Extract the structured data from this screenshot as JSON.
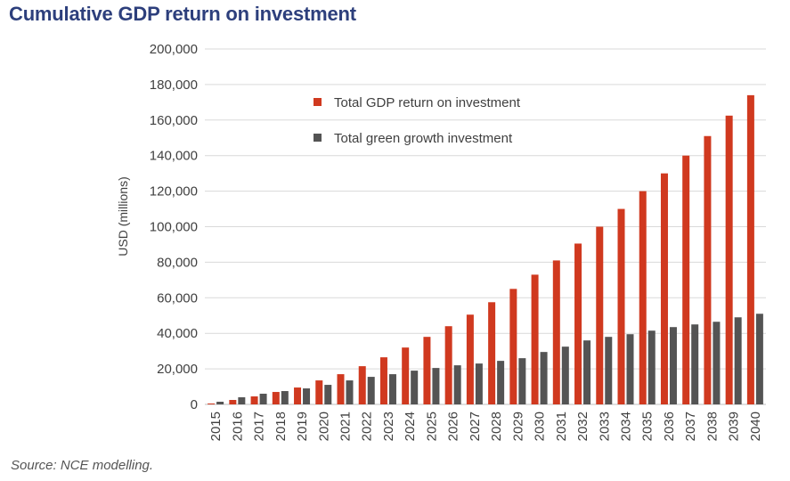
{
  "title": "Cumulative GDP return on investment",
  "source": "Source: NCE modelling.",
  "colors": {
    "series_0": "#d0391f",
    "series_1": "#545454",
    "grid": "#d9d9d9",
    "title": "#2d3f7c"
  },
  "chart_data": {
    "type": "bar",
    "title": "Cumulative GDP return on investment",
    "xlabel": "",
    "ylabel": "USD (millions)",
    "ylim": [
      0,
      200000
    ],
    "yticks": [
      0,
      20000,
      40000,
      60000,
      80000,
      100000,
      120000,
      140000,
      160000,
      180000,
      200000
    ],
    "ytick_labels": [
      "0",
      "20,000",
      "40,000",
      "60,000",
      "80,000",
      "100,000",
      "120,000",
      "140,000",
      "160,000",
      "180,000",
      "200,000"
    ],
    "grid": true,
    "legend_position": "top-right",
    "categories": [
      "2015",
      "2016",
      "2017",
      "2018",
      "2019",
      "2020",
      "2021",
      "2022",
      "2023",
      "2024",
      "2025",
      "2026",
      "2027",
      "2028",
      "2029",
      "2030",
      "2031",
      "2032",
      "2033",
      "2034",
      "2035",
      "2036",
      "2037",
      "2038",
      "2039",
      "2040"
    ],
    "series": [
      {
        "name": "Total GDP return on investment",
        "values": [
          500,
          2500,
          4500,
          7000,
          9500,
          13500,
          17000,
          21500,
          26500,
          32000,
          38000,
          44000,
          50500,
          57500,
          65000,
          73000,
          81000,
          90500,
          100000,
          110000,
          120000,
          130000,
          140000,
          151000,
          162500,
          174000
        ]
      },
      {
        "name": "Total green growth investment",
        "values": [
          1500,
          4000,
          6000,
          7500,
          9000,
          11000,
          13500,
          15500,
          17000,
          19000,
          20500,
          22000,
          23000,
          24500,
          26000,
          29500,
          32500,
          36000,
          38000,
          39500,
          41500,
          43500,
          45000,
          46500,
          49000,
          51000
        ]
      }
    ]
  }
}
